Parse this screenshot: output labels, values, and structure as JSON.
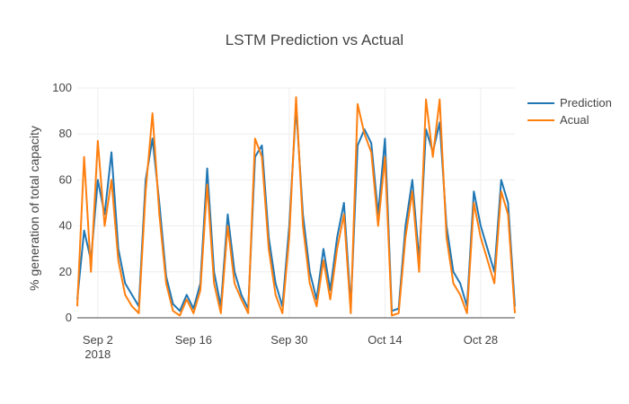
{
  "chart_data": {
    "type": "line",
    "title": "LSTM Prediction vs Actual",
    "xlabel": "",
    "ylabel": "% generation of total capacity",
    "x_range": [
      "2018-08-30",
      "2018-11-02"
    ],
    "ylim": [
      0,
      100
    ],
    "yticks": [
      0,
      20,
      40,
      60,
      80,
      100
    ],
    "xticks": [
      {
        "date": "2018-09-02",
        "label": "Sep 2",
        "sublabel": "2018"
      },
      {
        "date": "2018-09-16",
        "label": "Sep 16",
        "sublabel": ""
      },
      {
        "date": "2018-09-30",
        "label": "Sep 30",
        "sublabel": ""
      },
      {
        "date": "2018-10-14",
        "label": "Oct 14",
        "sublabel": ""
      },
      {
        "date": "2018-10-28",
        "label": "Oct 28",
        "sublabel": ""
      }
    ],
    "grid": true,
    "legend_position": "top-right",
    "series": [
      {
        "name": "Prediction",
        "color": "#1f77b4",
        "x": [
          "2018-08-30",
          "2018-08-31",
          "2018-09-01",
          "2018-09-02",
          "2018-09-03",
          "2018-09-04",
          "2018-09-05",
          "2018-09-06",
          "2018-09-07",
          "2018-09-08",
          "2018-09-09",
          "2018-09-10",
          "2018-09-11",
          "2018-09-12",
          "2018-09-13",
          "2018-09-14",
          "2018-09-15",
          "2018-09-16",
          "2018-09-17",
          "2018-09-18",
          "2018-09-19",
          "2018-09-20",
          "2018-09-21",
          "2018-09-22",
          "2018-09-23",
          "2018-09-24",
          "2018-09-25",
          "2018-09-26",
          "2018-09-27",
          "2018-09-28",
          "2018-09-29",
          "2018-09-30",
          "2018-10-01",
          "2018-10-02",
          "2018-10-03",
          "2018-10-04",
          "2018-10-05",
          "2018-10-06",
          "2018-10-07",
          "2018-10-08",
          "2018-10-09",
          "2018-10-10",
          "2018-10-11",
          "2018-10-12",
          "2018-10-13",
          "2018-10-14",
          "2018-10-15",
          "2018-10-16",
          "2018-10-17",
          "2018-10-18",
          "2018-10-19",
          "2018-10-20",
          "2018-10-21",
          "2018-10-22",
          "2018-10-23",
          "2018-10-24",
          "2018-10-25",
          "2018-10-26",
          "2018-10-27",
          "2018-10-28",
          "2018-10-29",
          "2018-10-30",
          "2018-10-31",
          "2018-11-01",
          "2018-11-02"
        ],
        "y": [
          8,
          38,
          25,
          60,
          45,
          72,
          30,
          15,
          10,
          5,
          60,
          78,
          50,
          18,
          6,
          3,
          10,
          4,
          15,
          65,
          20,
          5,
          45,
          20,
          10,
          4,
          70,
          75,
          35,
          15,
          5,
          40,
          92,
          45,
          20,
          8,
          30,
          12,
          35,
          50,
          5,
          75,
          82,
          76,
          45,
          78,
          3,
          4,
          40,
          60,
          25,
          82,
          72,
          85,
          40,
          20,
          15,
          5,
          55,
          40,
          30,
          20,
          60,
          50,
          5
        ],
        "values": [
          8,
          38,
          25,
          60,
          45,
          72,
          30,
          15,
          10,
          5,
          60,
          78,
          50,
          18,
          6,
          3,
          10,
          4,
          15,
          65,
          20,
          5,
          45,
          20,
          10,
          4,
          70,
          75,
          35,
          15,
          5,
          40,
          92,
          45,
          20,
          8,
          30,
          12,
          35,
          50,
          5,
          75,
          82,
          76,
          45,
          78,
          3,
          4,
          40,
          60,
          25,
          82,
          72,
          85,
          40,
          20,
          15,
          5,
          55,
          40,
          30,
          20,
          60,
          50,
          5
        ]
      },
      {
        "name": "Acual",
        "color": "#ff7f0e",
        "x": [
          "2018-08-30",
          "2018-08-31",
          "2018-09-01",
          "2018-09-02",
          "2018-09-03",
          "2018-09-04",
          "2018-09-05",
          "2018-09-06",
          "2018-09-07",
          "2018-09-08",
          "2018-09-09",
          "2018-09-10",
          "2018-09-11",
          "2018-09-12",
          "2018-09-13",
          "2018-09-14",
          "2018-09-15",
          "2018-09-16",
          "2018-09-17",
          "2018-09-18",
          "2018-09-19",
          "2018-09-20",
          "2018-09-21",
          "2018-09-22",
          "2018-09-23",
          "2018-09-24",
          "2018-09-25",
          "2018-09-26",
          "2018-09-27",
          "2018-09-28",
          "2018-09-29",
          "2018-09-30",
          "2018-10-01",
          "2018-10-02",
          "2018-10-03",
          "2018-10-04",
          "2018-10-05",
          "2018-10-06",
          "2018-10-07",
          "2018-10-08",
          "2018-10-09",
          "2018-10-10",
          "2018-10-11",
          "2018-10-12",
          "2018-10-13",
          "2018-10-14",
          "2018-10-15",
          "2018-10-16",
          "2018-10-17",
          "2018-10-18",
          "2018-10-19",
          "2018-10-20",
          "2018-10-21",
          "2018-10-22",
          "2018-10-23",
          "2018-10-24",
          "2018-10-25",
          "2018-10-26",
          "2018-10-27",
          "2018-10-28",
          "2018-10-29",
          "2018-10-30",
          "2018-10-31",
          "2018-11-01",
          "2018-11-02"
        ],
        "y": [
          5,
          70,
          20,
          77,
          40,
          60,
          25,
          10,
          5,
          2,
          55,
          89,
          45,
          15,
          3,
          1,
          8,
          2,
          12,
          58,
          15,
          2,
          40,
          15,
          8,
          2,
          78,
          70,
          30,
          10,
          2,
          35,
          96,
          40,
          15,
          5,
          25,
          8,
          30,
          45,
          2,
          93,
          80,
          72,
          40,
          70,
          1,
          2,
          35,
          55,
          20,
          95,
          70,
          95,
          35,
          15,
          10,
          2,
          50,
          35,
          25,
          15,
          55,
          45,
          2
        ],
        "values": [
          5,
          70,
          20,
          77,
          40,
          60,
          25,
          10,
          5,
          2,
          55,
          89,
          45,
          15,
          3,
          1,
          8,
          2,
          12,
          58,
          15,
          2,
          40,
          15,
          8,
          2,
          78,
          70,
          30,
          10,
          2,
          35,
          96,
          40,
          15,
          5,
          25,
          8,
          30,
          45,
          2,
          93,
          80,
          72,
          40,
          70,
          1,
          2,
          35,
          55,
          20,
          95,
          70,
          95,
          35,
          15,
          10,
          2,
          50,
          35,
          25,
          15,
          55,
          45,
          2
        ]
      }
    ]
  }
}
